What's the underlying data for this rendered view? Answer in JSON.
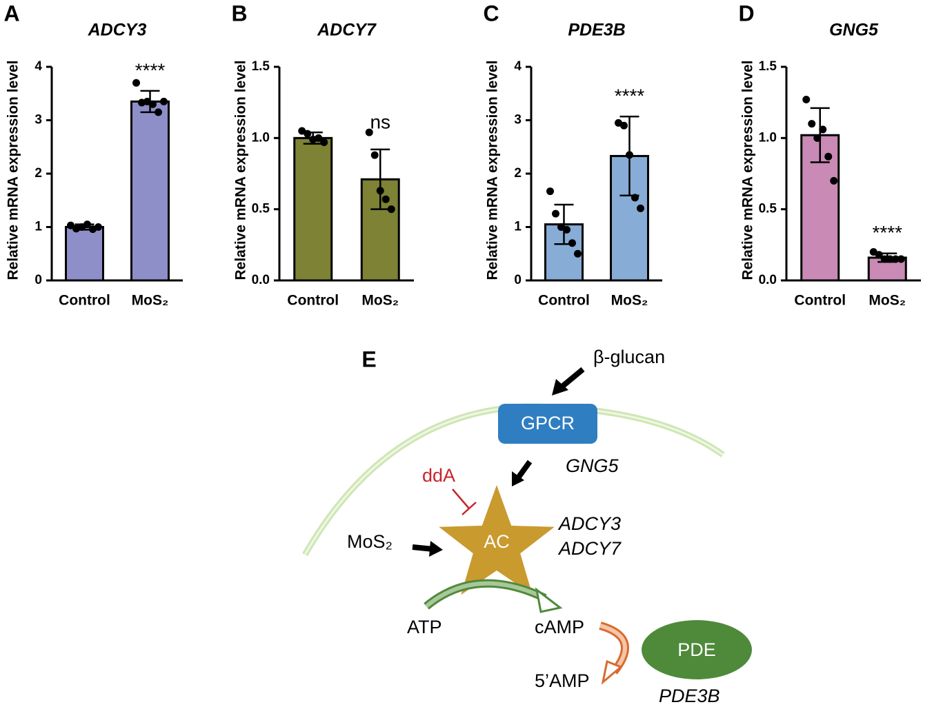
{
  "chart_data": [
    {
      "type": "bar",
      "panel": "A",
      "title": "ADCY3",
      "y_label": "Relative mRNA expression level",
      "categories": [
        "Control",
        "MoS₂"
      ],
      "values": [
        1.0,
        3.35
      ],
      "errors": [
        0.05,
        0.2
      ],
      "points": [
        [
          1.03,
          0.97,
          1.0,
          1.05,
          0.96,
          1.0
        ],
        [
          3.7,
          3.33,
          3.35,
          3.3,
          3.15,
          3.35
        ]
      ],
      "annotations": [
        null,
        "****"
      ],
      "colors": [
        "#8e8fc9",
        "#8e8fc9"
      ],
      "ylim": [
        0,
        4
      ],
      "yticks": [
        0,
        1,
        2,
        3,
        4
      ]
    },
    {
      "type": "bar",
      "panel": "B",
      "title": "ADCY7",
      "y_label": "Relative mRNA expression level",
      "categories": [
        "Control",
        "MoS₂"
      ],
      "values": [
        1.0,
        0.71
      ],
      "errors": [
        0.04,
        0.21
      ],
      "points": [
        [
          1.05,
          1.03,
          0.99,
          1.0,
          0.97
        ],
        [
          1.04,
          0.88,
          0.63,
          0.57,
          0.5
        ]
      ],
      "annotations": [
        null,
        "ns"
      ],
      "colors": [
        "#7d8234",
        "#7d8234"
      ],
      "ylim": [
        0,
        1.5
      ],
      "yticks": [
        {
          "value": 0,
          "label": "0.0"
        },
        {
          "value": 0.5,
          "label": "0.5"
        },
        {
          "value": 1,
          "label": "1.0"
        },
        {
          "value": 1.5,
          "label": "1.5"
        }
      ]
    },
    {
      "type": "bar",
      "panel": "C",
      "title": "PDE3B",
      "y_label": "Relative mRNA expression level",
      "categories": [
        "Control",
        "MoS₂"
      ],
      "values": [
        1.05,
        2.33
      ],
      "errors": [
        0.37,
        0.74
      ],
      "points": [
        [
          1.67,
          1.25,
          1.0,
          0.95,
          0.7,
          0.5
        ],
        [
          2.95,
          2.9,
          2.35,
          1.55,
          1.35
        ]
      ],
      "annotations": [
        null,
        "****"
      ],
      "colors": [
        "#87acd6",
        "#87acd6"
      ],
      "ylim": [
        0,
        4
      ],
      "yticks": [
        0,
        1,
        2,
        3,
        4
      ]
    },
    {
      "type": "bar",
      "panel": "D",
      "title": "GNG5",
      "y_label": "Relative mRNA expression level",
      "categories": [
        "Control",
        "MoS₂"
      ],
      "values": [
        1.02,
        0.16
      ],
      "errors": [
        0.19,
        0.03
      ],
      "points": [
        [
          1.27,
          1.1,
          1.0,
          1.06,
          0.87,
          0.7
        ],
        [
          0.2,
          0.18,
          0.15,
          0.15,
          0.15,
          0.15
        ]
      ],
      "annotations": [
        null,
        "****"
      ],
      "colors": [
        "#c98ab5",
        "#c98ab5"
      ],
      "ylim": [
        0,
        1.5
      ],
      "yticks": [
        {
          "value": 0,
          "label": "0.0"
        },
        {
          "value": 0.5,
          "label": "0.5"
        },
        {
          "value": 1,
          "label": "1.0"
        },
        {
          "value": 1.5,
          "label": "1.5"
        }
      ]
    }
  ],
  "diagram": {
    "panel": "E",
    "ligand": "β-glucan",
    "receptor": "GPCR",
    "gpcr_gene": "GNG5",
    "inhibitor": "ddA",
    "stimulus": "MoS₂",
    "enzyme": "AC",
    "ac_genes": [
      "ADCY3",
      "ADCY7"
    ],
    "substrate": "ATP",
    "product": "cAMP",
    "degraded": "5’AMP",
    "pde": "PDE",
    "pde_gene": "PDE3B"
  }
}
